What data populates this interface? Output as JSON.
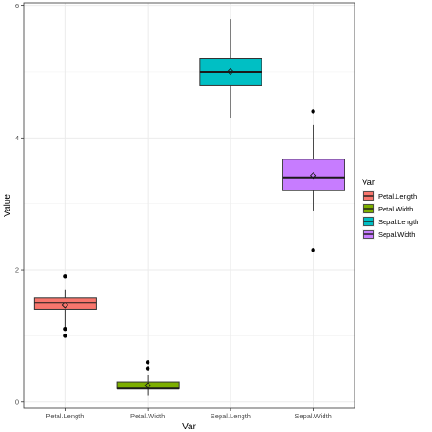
{
  "chart_data": {
    "type": "boxplot",
    "xlabel": "Var",
    "ylabel": "Value",
    "ylim": [
      -0.1,
      6.05
    ],
    "yticks": [
      0,
      2,
      4,
      6
    ],
    "grid": true,
    "legend_position": "right",
    "legend": {
      "title": "Var",
      "entries": [
        "Petal.Length",
        "Petal.Width",
        "Sepal.Length",
        "Sepal.Width"
      ]
    },
    "categories": [
      "Petal.Length",
      "Petal.Width",
      "Sepal.Length",
      "Sepal.Width"
    ],
    "colors": [
      "#F8766D",
      "#7CAE00",
      "#00BFC4",
      "#C77CFF"
    ],
    "boxes": [
      {
        "name": "Petal.Length",
        "whisker_low": 1.1,
        "q1": 1.4,
        "median": 1.5,
        "q3": 1.575,
        "whisker_high": 1.7,
        "mean": 1.462,
        "outliers": [
          1.0,
          1.1,
          1.9
        ]
      },
      {
        "name": "Petal.Width",
        "whisker_low": 0.1,
        "q1": 0.2,
        "median": 0.2,
        "q3": 0.3,
        "whisker_high": 0.4,
        "mean": 0.246,
        "outliers": [
          0.5,
          0.6
        ]
      },
      {
        "name": "Sepal.Length",
        "whisker_low": 4.3,
        "q1": 4.8,
        "median": 5.0,
        "q3": 5.2,
        "whisker_high": 5.8,
        "mean": 5.006,
        "outliers": []
      },
      {
        "name": "Sepal.Width",
        "whisker_low": 2.9,
        "q1": 3.2,
        "median": 3.4,
        "q3": 3.675,
        "whisker_high": 4.2,
        "mean": 3.428,
        "outliers": [
          2.3,
          4.4
        ]
      }
    ]
  }
}
